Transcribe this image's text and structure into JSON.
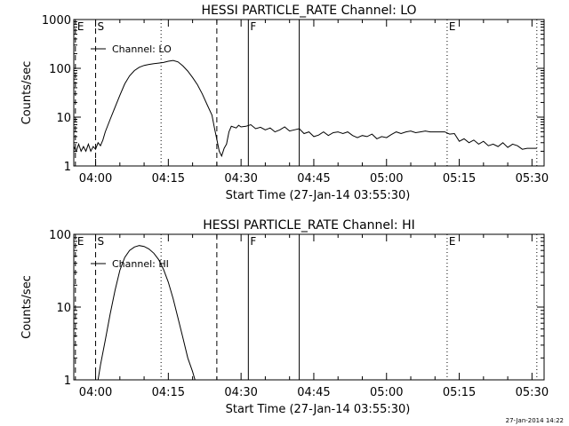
{
  "footer": {
    "date": "27-Jan-2014 14:22"
  },
  "chart_data": [
    {
      "type": "line",
      "title": "HESSI PARTICLE_RATE Channel: LO",
      "xlabel": "Start Time (27-Jan-14 03:55:30)",
      "ylabel": "Counts/sec",
      "yscale": "log",
      "xlim": [
        "03:55:30",
        "05:32:30"
      ],
      "ylim": [
        1,
        1000
      ],
      "x_ticks": [
        "04:00",
        "04:15",
        "04:30",
        "04:45",
        "05:00",
        "05:15",
        "05:30"
      ],
      "y_ticks": [
        "1",
        "10",
        "100",
        "1000"
      ],
      "legend": "Channel: LO",
      "legend_position": "top-left",
      "markers": [
        {
          "label": "E",
          "time": "03:55:50",
          "style": "dashed"
        },
        {
          "label": "S",
          "time": "04:00:00",
          "style": "dashed"
        },
        {
          "label": "",
          "time": "04:13:30",
          "style": "dotted"
        },
        {
          "label": "",
          "time": "04:25:00",
          "style": "dashed"
        },
        {
          "label": "F",
          "time": "04:31:30",
          "style": "solid"
        },
        {
          "label": "",
          "time": "04:42:00",
          "style": "solid"
        },
        {
          "label": "E",
          "time": "05:12:30",
          "style": "dotted"
        },
        {
          "label": "",
          "time": "05:31:00",
          "style": "dotted"
        }
      ],
      "series": [
        {
          "x": [
            "03:55:30",
            "03:56:00",
            "03:56:30",
            "03:57:00",
            "03:57:30",
            "03:58:00",
            "03:58:30",
            "03:59:00",
            "03:59:30",
            "04:00:00",
            "04:00:30",
            "04:01:00",
            "04:01:30",
            "04:02:00",
            "04:03:00",
            "04:04:00",
            "04:05:00",
            "04:06:00",
            "04:07:00",
            "04:08:00",
            "04:09:00",
            "04:10:00",
            "04:11:00",
            "04:12:00",
            "04:13:00",
            "04:14:00",
            "04:15:00",
            "04:16:00",
            "04:17:00",
            "04:18:00",
            "04:19:00",
            "04:20:00",
            "04:21:00",
            "04:22:00",
            "04:23:00",
            "04:24:00",
            "04:24:30",
            "04:25:00",
            "04:25:30",
            "04:26:00",
            "04:26:30",
            "04:27:00",
            "04:27:30",
            "04:28:00",
            "04:29:00",
            "04:29:30",
            "04:30:00",
            "04:31:00",
            "04:32:00",
            "04:33:00",
            "04:34:00",
            "04:35:00",
            "04:36:00",
            "04:37:00",
            "04:38:00",
            "04:39:00",
            "04:40:00",
            "04:41:00",
            "04:42:00",
            "04:43:00",
            "04:44:00",
            "04:45:00",
            "04:46:00",
            "04:47:00",
            "04:48:00",
            "04:49:00",
            "04:50:00",
            "04:51:00",
            "04:52:00",
            "04:53:00",
            "04:54:00",
            "04:55:00",
            "04:56:00",
            "04:57:00",
            "04:58:00",
            "04:59:00",
            "05:00:00",
            "05:01:00",
            "05:02:00",
            "05:03:00",
            "05:04:00",
            "05:05:00",
            "05:06:00",
            "05:07:00",
            "05:08:00",
            "05:09:00",
            "05:10:00",
            "05:11:00",
            "05:12:00",
            "05:13:00",
            "05:14:00",
            "05:15:00",
            "05:16:00",
            "05:17:00",
            "05:18:00",
            "05:19:00",
            "05:20:00",
            "05:21:00",
            "05:22:00",
            "05:23:00",
            "05:24:00",
            "05:25:00",
            "05:26:00",
            "05:27:00",
            "05:28:00",
            "05:29:00",
            "05:30:00",
            "05:31:00"
          ],
          "y": [
            2.5,
            2,
            2.8,
            2,
            2.5,
            2,
            2.8,
            2,
            2.5,
            2.2,
            3,
            2.6,
            3.4,
            5,
            9,
            16,
            28,
            48,
            70,
            90,
            105,
            115,
            120,
            125,
            128,
            132,
            140,
            145,
            135,
            112,
            88,
            65,
            46,
            30,
            18,
            11,
            6,
            3.5,
            2,
            1.6,
            2.3,
            2.8,
            5,
            6.5,
            6,
            6.8,
            6.3,
            6.5,
            7,
            5.8,
            6.2,
            5.5,
            6,
            5,
            5.5,
            6.3,
            5.2,
            5.5,
            5.8,
            4.6,
            5,
            4,
            4.3,
            5,
            4.2,
            4.8,
            5,
            4.6,
            5,
            4.2,
            3.8,
            4.2,
            4,
            4.5,
            3.6,
            4,
            3.8,
            4.4,
            5,
            4.6,
            5,
            5.2,
            4.8,
            5,
            5.2,
            5,
            5,
            5,
            5,
            4.5,
            4.6,
            3.2,
            3.6,
            3,
            3.4,
            2.8,
            3.2,
            2.6,
            2.8,
            2.5,
            3,
            2.4,
            2.8,
            2.6,
            2.2,
            2.3,
            2.3,
            2.3
          ]
        }
      ]
    },
    {
      "type": "line",
      "title": "HESSI PARTICLE_RATE Channel: HI",
      "xlabel": "Start Time (27-Jan-14 03:55:30)",
      "ylabel": "Counts/sec",
      "yscale": "log",
      "xlim": [
        "03:55:30",
        "05:32:30"
      ],
      "ylim": [
        1,
        100
      ],
      "x_ticks": [
        "04:00",
        "04:15",
        "04:30",
        "04:45",
        "05:00",
        "05:15",
        "05:30"
      ],
      "y_ticks": [
        "1",
        "10",
        "100"
      ],
      "legend": "Channel: HI",
      "legend_position": "top-left",
      "markers": [
        {
          "label": "E",
          "time": "03:55:50",
          "style": "dashed"
        },
        {
          "label": "S",
          "time": "04:00:00",
          "style": "dashed"
        },
        {
          "label": "",
          "time": "04:13:30",
          "style": "dotted"
        },
        {
          "label": "",
          "time": "04:25:00",
          "style": "dashed"
        },
        {
          "label": "F",
          "time": "04:31:30",
          "style": "solid"
        },
        {
          "label": "",
          "time": "04:42:00",
          "style": "solid"
        },
        {
          "label": "E",
          "time": "05:12:30",
          "style": "dotted"
        },
        {
          "label": "",
          "time": "05:31:00",
          "style": "dotted"
        }
      ],
      "series": [
        {
          "x": [
            "04:00:30",
            "04:01:00",
            "04:02:00",
            "04:03:00",
            "04:04:00",
            "04:05:00",
            "04:06:00",
            "04:07:00",
            "04:08:00",
            "04:09:00",
            "04:10:00",
            "04:11:00",
            "04:12:00",
            "04:13:00",
            "04:14:00",
            "04:15:00",
            "04:16:00",
            "04:17:00",
            "04:18:00",
            "04:19:00",
            "04:20:00",
            "04:20:30"
          ],
          "y": [
            1,
            1.6,
            3.5,
            8,
            17,
            32,
            48,
            60,
            67,
            70,
            68,
            63,
            55,
            45,
            33,
            22,
            13,
            7,
            3.8,
            2,
            1.3,
            1
          ]
        }
      ]
    }
  ]
}
